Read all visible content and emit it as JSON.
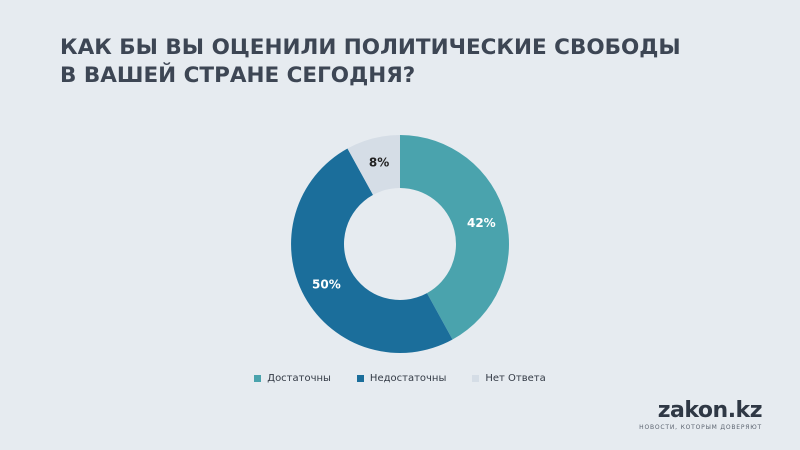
{
  "title_lines": [
    "КАК БЫ ВЫ ОЦЕНИЛИ ПОЛИТИЧЕСКИЕ СВОБОДЫ",
    "В ВАШЕЙ СТРАНЕ СЕГОДНЯ?"
  ],
  "chart_data": {
    "type": "pie",
    "title": "КАК БЫ ВЫ ОЦЕНИЛИ ПОЛИТИЧЕСКИЕ СВОБОДЫ В ВАШЕЙ СТРАНЕ СЕГОДНЯ?",
    "donut": true,
    "categories": [
      "Достаточны",
      "Недостаточны",
      "Нет Ответа"
    ],
    "values": [
      42,
      50,
      8
    ],
    "data_labels": [
      "42%",
      "50%",
      "8%"
    ],
    "colors": [
      "#4aa3ad",
      "#1b6e9b",
      "#d5dde6"
    ],
    "label_colors": [
      "#ffffff",
      "#ffffff",
      "#222222"
    ],
    "legend_position": "bottom"
  },
  "brand": {
    "name": "zakon.kz",
    "tagline": "новости, которым доверяют"
  }
}
